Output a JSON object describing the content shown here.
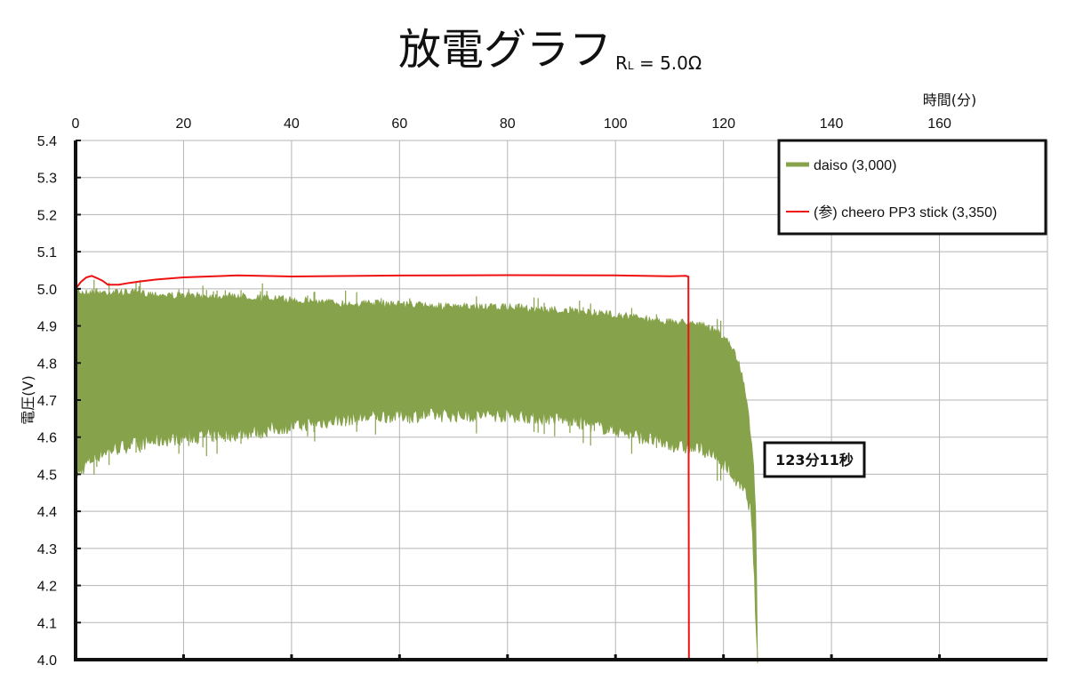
{
  "chart_data": {
    "type": "line",
    "title": "放電グラフ",
    "subtitle_main": "R",
    "subtitle_sub": "L",
    "subtitle_rest": " = 5.0Ω",
    "xlabel": "時間(分)",
    "ylabel": "電圧(V)",
    "xlim": [
      0,
      180
    ],
    "ylim": [
      4.0,
      5.4
    ],
    "x_ticks": [
      "0",
      "20",
      "40",
      "60",
      "80",
      "100",
      "120",
      "140",
      "160"
    ],
    "y_ticks": [
      "4.0",
      "4.1",
      "4.2",
      "4.3",
      "4.4",
      "4.5",
      "4.6",
      "4.7",
      "4.8",
      "4.9",
      "5.0",
      "5.1",
      "5.2",
      "5.3",
      "5.4"
    ],
    "grid": true,
    "legend_position": "top-right",
    "annotation": {
      "text": "123分11秒",
      "x": 126.5,
      "y": 4.55
    },
    "series": [
      {
        "name": "daiso (3,000)",
        "color": "#86a24a",
        "style": "band",
        "x": [
          0,
          1,
          2,
          5,
          10,
          20,
          30,
          40,
          50,
          60,
          70,
          80,
          90,
          100,
          105,
          110,
          114,
          116,
          118,
          120,
          122,
          123,
          124,
          125,
          125.5,
          126,
          126.3
        ],
        "upper": [
          5.01,
          5.0,
          5.0,
          5.0,
          5.0,
          4.99,
          4.99,
          4.98,
          4.97,
          4.97,
          4.96,
          4.96,
          4.95,
          4.94,
          4.93,
          4.92,
          4.92,
          4.91,
          4.9,
          4.88,
          4.84,
          4.8,
          4.74,
          4.62,
          4.55,
          4.4,
          4.0
        ],
        "lower": [
          4.48,
          4.5,
          4.52,
          4.55,
          4.57,
          4.59,
          4.6,
          4.62,
          4.64,
          4.65,
          4.65,
          4.65,
          4.64,
          4.61,
          4.59,
          4.57,
          4.56,
          4.56,
          4.54,
          4.52,
          4.48,
          4.46,
          4.44,
          4.4,
          4.3,
          4.1,
          4.0
        ]
      },
      {
        "name": "(参) cheero PP3 stick (3,350)",
        "color": "#ee1111",
        "style": "line",
        "x": [
          0,
          1,
          2,
          3,
          4,
          5,
          6,
          8,
          10,
          12,
          15,
          20,
          30,
          40,
          60,
          80,
          100,
          110,
          113,
          113.5,
          113.6
        ],
        "y": [
          5.0,
          5.02,
          5.03,
          5.035,
          5.03,
          5.02,
          5.01,
          5.012,
          5.015,
          5.02,
          5.025,
          5.03,
          5.035,
          5.035,
          5.035,
          5.035,
          5.035,
          5.035,
          5.033,
          5.033,
          4.0
        ]
      }
    ]
  }
}
